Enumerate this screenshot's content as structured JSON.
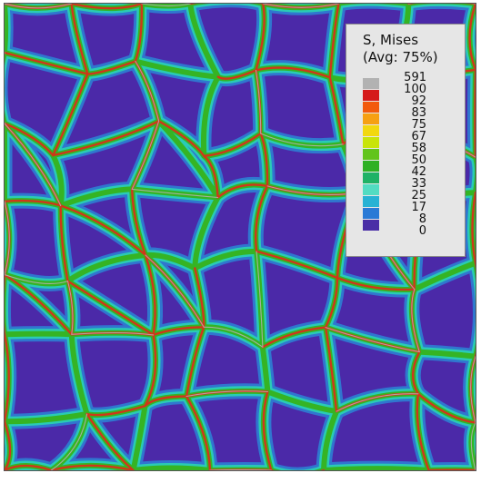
{
  "legend": {
    "title_line1": "S, Mises",
    "title_line2": "(Avg: 75%)",
    "labels": [
      "591",
      "100",
      "92",
      "83",
      "75",
      "67",
      "58",
      "50",
      "42",
      "33",
      "25",
      "17",
      "8",
      "0"
    ],
    "colors": [
      "#b2b2b2",
      "#d51a1a",
      "#f25a0c",
      "#f6a012",
      "#f2d80e",
      "#c8e40a",
      "#62c41c",
      "#2eb024",
      "#1fb266",
      "#52dcc2",
      "#27b2d4",
      "#2a7ad6",
      "#4a2ea6"
    ]
  },
  "field_colors": {
    "background": "#4b29a8",
    "low": "#2e7fd4",
    "mid": "#2ad0b4",
    "band": "#35b424",
    "high": "#e02a18",
    "peak": "#b8b0b2"
  }
}
